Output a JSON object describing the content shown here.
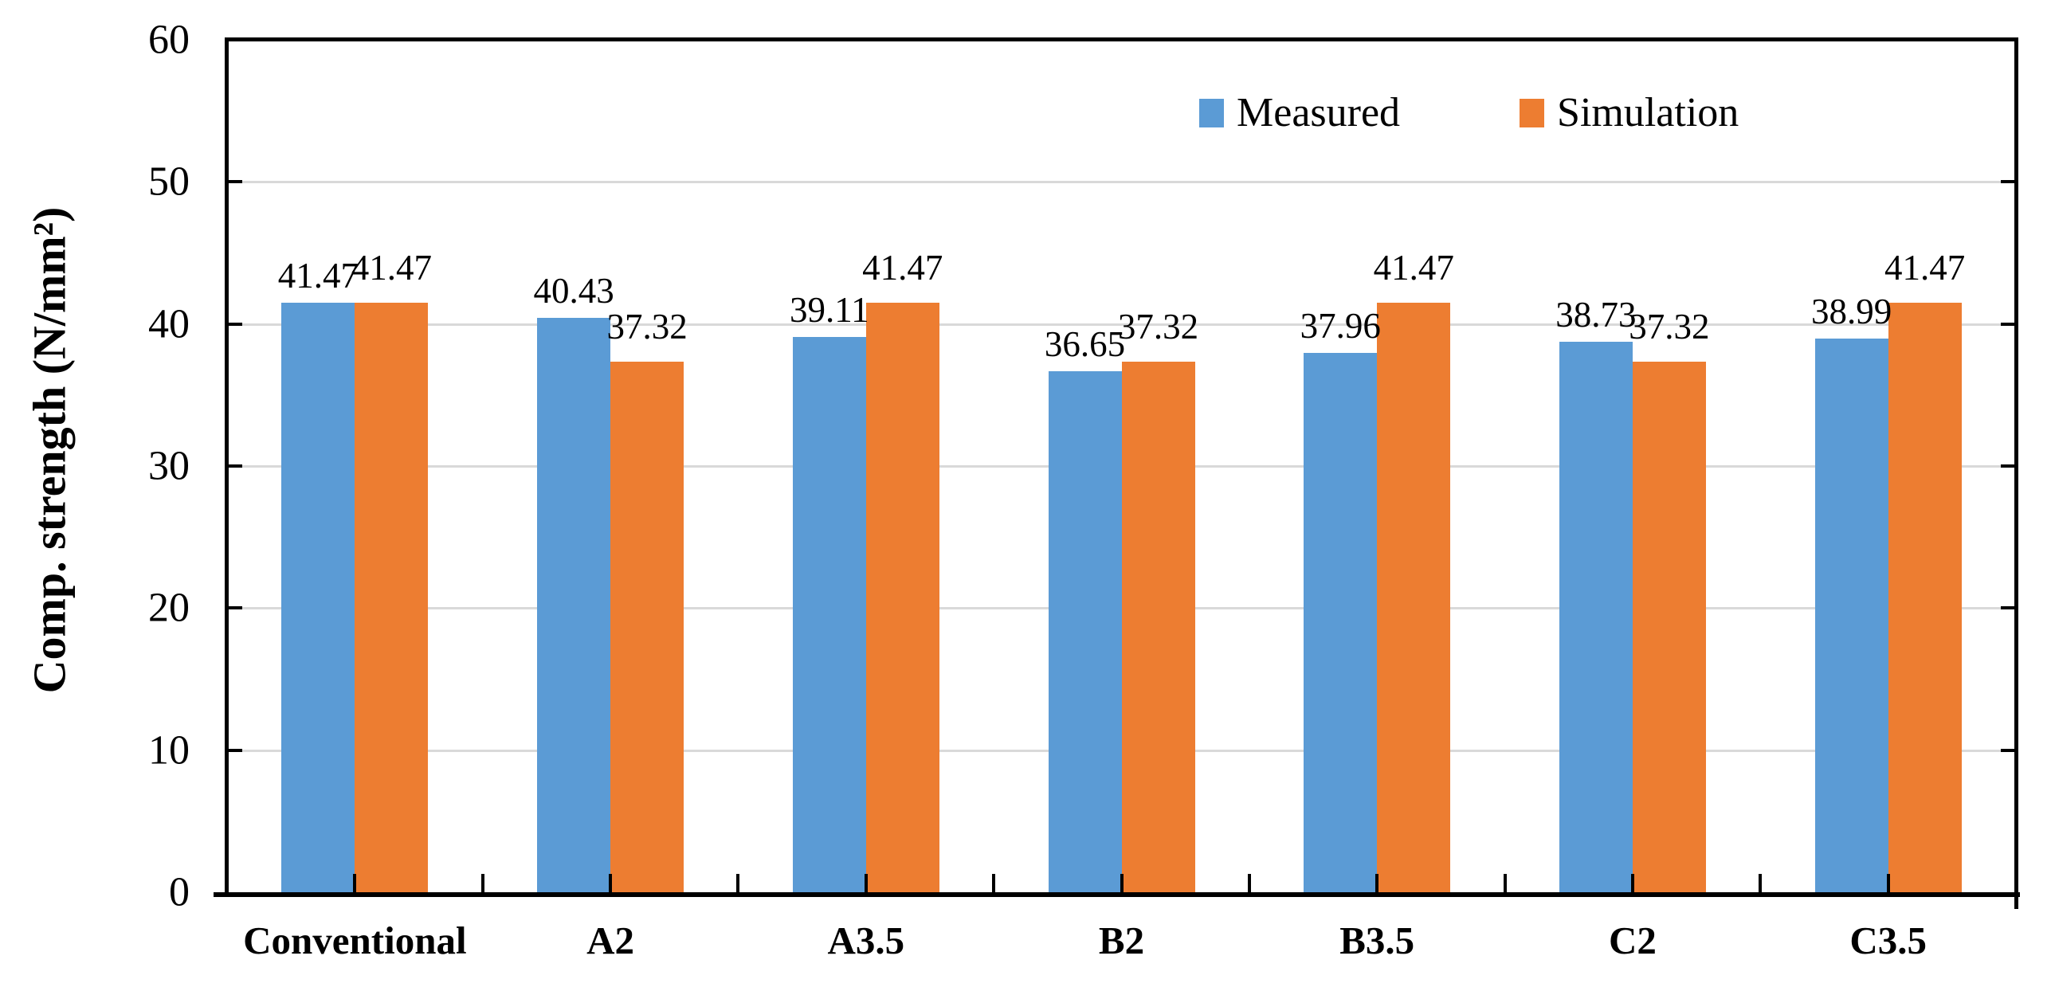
{
  "chart_data": {
    "type": "bar",
    "title": "",
    "ylabel": "Comp. strength (N/mm²)",
    "xlabel": "",
    "ylim": [
      0,
      60
    ],
    "ytick_interval": 10,
    "yticks": [
      0,
      10,
      20,
      30,
      40,
      50,
      60
    ],
    "grid": "horizontal",
    "gridline_color": "#d9d9d9",
    "axis_color": "#000000",
    "legend_position": "top-right",
    "data_labels": true,
    "data_label_decimals": 2,
    "categories": [
      "Conventional",
      "A2",
      "A3.5",
      "B2",
      "B3.5",
      "C2",
      "C3.5"
    ],
    "series": [
      {
        "name": "Measured",
        "color": "#5b9bd5",
        "values": [
          41.47,
          40.43,
          39.11,
          36.65,
          37.96,
          38.73,
          38.99
        ]
      },
      {
        "name": "Simulation",
        "color": "#ed7d31",
        "values": [
          41.47,
          37.32,
          41.47,
          37.32,
          41.47,
          37.32,
          41.47
        ]
      }
    ]
  }
}
